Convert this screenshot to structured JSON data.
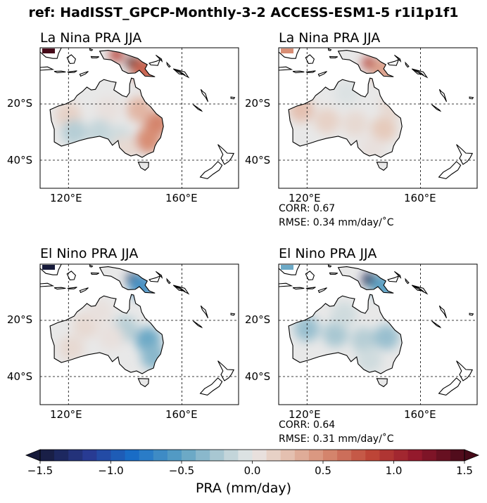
{
  "figure": {
    "title": "ref: HadISST_GPCP-Monthly-3-2 ACCESS-ESM1-5 r1i1p1f1"
  },
  "map_extent": {
    "lon": [
      110,
      180
    ],
    "lat": [
      -50,
      0
    ]
  },
  "panels": [
    {
      "title": "La Nina PRA JJA",
      "lat_labels": [
        "20°S",
        "40°S"
      ],
      "lon_labels": [
        "120°E",
        "160°E"
      ],
      "stats": null,
      "fields": [
        {
          "lon": 113,
          "lat": -0.5,
          "v": 1.6
        },
        {
          "lon": 143,
          "lat": -5.5,
          "v": 1.6
        },
        {
          "lon": 137,
          "lat": -2.5,
          "v": 0.9
        },
        {
          "lon": 147,
          "lat": -8,
          "v": 0.7
        },
        {
          "lon": 151,
          "lat": -27,
          "v": 0.55
        },
        {
          "lon": 148,
          "lat": -33,
          "v": 0.5
        },
        {
          "lon": 145,
          "lat": -22,
          "v": 0.3
        },
        {
          "lon": 134,
          "lat": -22,
          "v": 0.05
        },
        {
          "lon": 120,
          "lat": -24,
          "v": 0.15
        },
        {
          "lon": 122,
          "lat": -30,
          "v": -0.2
        },
        {
          "lon": 131,
          "lat": -30,
          "v": -0.15
        },
        {
          "lon": 138,
          "lat": -32,
          "v": -0.1
        },
        {
          "lon": 140,
          "lat": -36,
          "v": 0.1
        }
      ]
    },
    {
      "title": "La Nina PRA JJA",
      "lat_labels": [
        "20°S",
        "40°S"
      ],
      "lon_labels": [
        "120°E",
        "160°E"
      ],
      "stats": {
        "corr": "CORR: 0.67",
        "rmse": "RMSE: 0.34 mm/day/$^\\circ$C"
      },
      "fields": [
        {
          "lon": 113,
          "lat": -0.5,
          "v": 0.5
        },
        {
          "lon": 142,
          "lat": -5.5,
          "v": 0.9
        },
        {
          "lon": 147,
          "lat": -8,
          "v": 0.4
        },
        {
          "lon": 118,
          "lat": -22,
          "v": 0.25
        },
        {
          "lon": 127,
          "lat": -26,
          "v": 0.15
        },
        {
          "lon": 137,
          "lat": -27,
          "v": 0.1
        },
        {
          "lon": 147,
          "lat": -29,
          "v": 0.2
        },
        {
          "lon": 150,
          "lat": -21,
          "v": 0.1
        },
        {
          "lon": 143,
          "lat": -36,
          "v": 0.05
        },
        {
          "lon": 134,
          "lat": -16,
          "v": -0.05
        }
      ]
    },
    {
      "title": "El Nino PRA JJA",
      "lat_labels": [
        "20°S",
        "40°S"
      ],
      "lon_labels": [
        "120°E",
        "160°E"
      ],
      "stats": null,
      "fields": [
        {
          "lon": 113,
          "lat": -0.5,
          "v": -1.6
        },
        {
          "lon": 143,
          "lat": -5.5,
          "v": -1.4
        },
        {
          "lon": 146,
          "lat": -8,
          "v": -0.6
        },
        {
          "lon": 148,
          "lat": -27,
          "v": -0.45
        },
        {
          "lon": 150,
          "lat": -33,
          "v": -0.35
        },
        {
          "lon": 140,
          "lat": -23,
          "v": -0.2
        },
        {
          "lon": 126,
          "lat": -22,
          "v": 0.1
        },
        {
          "lon": 135,
          "lat": -26,
          "v": 0.05
        },
        {
          "lon": 121,
          "lat": -30,
          "v": 0.1
        },
        {
          "lon": 131,
          "lat": -17,
          "v": 0.05
        }
      ]
    },
    {
      "title": "El Nino PRA JJA",
      "lat_labels": [
        "20°S",
        "40°S"
      ],
      "lon_labels": [
        "120°E",
        "160°E"
      ],
      "stats": {
        "corr": "CORR: 0.64",
        "rmse": "RMSE: 0.31 mm/day/$^\\circ$C"
      },
      "fields": [
        {
          "lon": 113,
          "lat": -0.5,
          "v": -0.45
        },
        {
          "lon": 142,
          "lat": -5.5,
          "v": -1.4
        },
        {
          "lon": 147,
          "lat": -8,
          "v": -0.5
        },
        {
          "lon": 120,
          "lat": -23,
          "v": -0.3
        },
        {
          "lon": 130,
          "lat": -25,
          "v": -0.25
        },
        {
          "lon": 140,
          "lat": -27,
          "v": -0.2
        },
        {
          "lon": 148,
          "lat": -26,
          "v": -0.3
        },
        {
          "lon": 142,
          "lat": -34,
          "v": -0.1
        },
        {
          "lon": 133,
          "lat": -18,
          "v": -0.1
        }
      ]
    }
  ],
  "colorbar": {
    "label": "PRA (mm/day)",
    "vmin": -1.5,
    "vmax": 1.5,
    "ticks": [
      "−1.5",
      "−1.0",
      "−0.5",
      "0.0",
      "0.5",
      "1.0",
      "1.5"
    ],
    "tick_values": [
      -1.5,
      -1.0,
      -0.5,
      0.0,
      0.5,
      1.0,
      1.5
    ],
    "colormap": "balance",
    "extend": "both"
  }
}
